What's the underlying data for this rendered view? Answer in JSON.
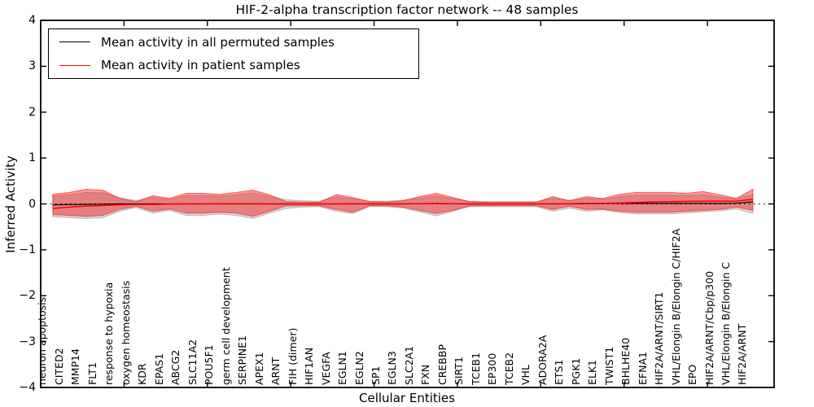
{
  "chart_data": {
    "type": "line",
    "title": "HIF-2-alpha transcription factor network -- 48 samples",
    "xlabel": "Cellular Entities",
    "ylabel": "Inferred Activity",
    "ylim": [
      -4,
      4
    ],
    "yticks": [
      4,
      3,
      2,
      1,
      0,
      -1,
      -2,
      -3,
      -4
    ],
    "xlim": [
      0,
      44
    ],
    "x_tick_positions": [
      5,
      10,
      15,
      20,
      25,
      30,
      35,
      40
    ],
    "x_offset": 0.73,
    "grid": false,
    "legend_position": "upper left",
    "categories": [
      "neuron apoptosis",
      "CITED2",
      "MMP14",
      "FLT1",
      "response to hypoxia",
      "oxygen homeostasis",
      "KDR",
      "EPAS1",
      "ABCG2",
      "SLC11A2",
      "POU5F1",
      "germ cell development",
      "SERPINE1",
      "APEX1",
      "ARNT",
      "FIH (dimer)",
      "HIF1AN",
      "VEGFA",
      "EGLN1",
      "EGLN2",
      "SP1",
      "EGLN3",
      "SLC2A1",
      "FXN",
      "CREBBP",
      "SIRT1",
      "TCEB1",
      "EP300",
      "TCEB2",
      "VHL",
      "ADORA2A",
      "ETS1",
      "PGK1",
      "ELK1",
      "TWIST1",
      "BHLHE40",
      "EFNA1",
      "HIF2A/ARNT/SIRT1",
      "VHL/Elongin B/Elongin C/HIF2A",
      "EPO",
      "HIF2A/ARNT/Cbp/p300",
      "VHL/Elongin B/Elongin C",
      "HIF2A/ARNT"
    ],
    "series": [
      {
        "name": "Mean activity in all permuted samples",
        "color": "#000000",
        "values": [
          -0.02,
          -0.015,
          -0.01,
          -0.005,
          0,
          0,
          0,
          0,
          0,
          0,
          0.005,
          0.005,
          0.005,
          0,
          0,
          0,
          0,
          0,
          0.005,
          0,
          0,
          0,
          0.005,
          0.01,
          0.005,
          0,
          0,
          0,
          0,
          0,
          0,
          0,
          0.005,
          0.005,
          0.01,
          0.01,
          0.01,
          0.01,
          0.01,
          0.01,
          0.01,
          0.015,
          0.045
        ]
      },
      {
        "name": "Mean activity in patient samples",
        "color": "#ff0000",
        "values": [
          -0.1,
          -0.07,
          -0.05,
          -0.035,
          -0.02,
          -0.01,
          -0.01,
          -0.005,
          0,
          0,
          0,
          0,
          0,
          0,
          0,
          0,
          0,
          0,
          0,
          0,
          0,
          0,
          0.005,
          0.01,
          0.005,
          0,
          0,
          0,
          0,
          0,
          0.005,
          0.005,
          0.01,
          0.01,
          0.02,
          0.03,
          0.045,
          0.05,
          0.055,
          0.06,
          0.06,
          0.06,
          0.1
        ]
      }
    ],
    "bands": [
      {
        "name": "permuted-samples-std-band",
        "color": "#808080",
        "fill_opacity": 0.32,
        "edge_opacity": 0.45,
        "upper": [
          0.18,
          0.2,
          0.25,
          0.24,
          0.14,
          0.07,
          0.14,
          0.1,
          0.18,
          0.18,
          0.17,
          0.2,
          0.24,
          0.16,
          0.09,
          0.07,
          0.06,
          0.15,
          0.11,
          0.06,
          0.06,
          0.08,
          0.12,
          0.18,
          0.11,
          0.06,
          0.05,
          0.05,
          0.05,
          0.05,
          0.12,
          0.08,
          0.12,
          0.1,
          0.16,
          0.19,
          0.19,
          0.19,
          0.18,
          0.2,
          0.15,
          0.11,
          0.21
        ],
        "lower": [
          -0.28,
          -0.3,
          -0.32,
          -0.3,
          -0.16,
          -0.08,
          -0.2,
          -0.14,
          -0.25,
          -0.25,
          -0.22,
          -0.25,
          -0.32,
          -0.2,
          -0.1,
          -0.07,
          -0.06,
          -0.16,
          -0.21,
          -0.06,
          -0.06,
          -0.09,
          -0.17,
          -0.26,
          -0.16,
          -0.06,
          -0.06,
          -0.06,
          -0.06,
          -0.06,
          -0.16,
          -0.09,
          -0.16,
          -0.13,
          -0.19,
          -0.22,
          -0.22,
          -0.22,
          -0.2,
          -0.17,
          -0.15,
          -0.11,
          -0.21
        ]
      },
      {
        "name": "patient-samples-std-band",
        "color": "#ff0000",
        "fill_opacity": 0.4,
        "edge_opacity": 0.55,
        "upper": [
          0.21,
          0.25,
          0.32,
          0.3,
          0.12,
          0.05,
          0.18,
          0.12,
          0.23,
          0.23,
          0.21,
          0.25,
          0.3,
          0.2,
          0.05,
          0.04,
          0.04,
          0.2,
          0.14,
          0.05,
          0.04,
          0.07,
          0.16,
          0.23,
          0.14,
          0.05,
          0.04,
          0.04,
          0.04,
          0.04,
          0.16,
          0.07,
          0.16,
          0.12,
          0.21,
          0.25,
          0.25,
          0.25,
          0.23,
          0.27,
          0.2,
          0.12,
          0.32
        ],
        "lower": [
          -0.23,
          -0.25,
          -0.27,
          -0.25,
          -0.12,
          -0.05,
          -0.16,
          -0.11,
          -0.2,
          -0.2,
          -0.18,
          -0.2,
          -0.27,
          -0.16,
          -0.04,
          -0.04,
          -0.04,
          -0.12,
          -0.18,
          -0.04,
          -0.04,
          -0.07,
          -0.14,
          -0.21,
          -0.14,
          -0.04,
          -0.04,
          -0.04,
          -0.04,
          -0.04,
          -0.12,
          -0.05,
          -0.12,
          -0.11,
          -0.16,
          -0.18,
          -0.18,
          -0.18,
          -0.16,
          -0.14,
          -0.12,
          -0.07,
          -0.14
        ]
      }
    ],
    "zero_line": {
      "y": 0,
      "style": "dotted",
      "color": "#000000"
    }
  }
}
